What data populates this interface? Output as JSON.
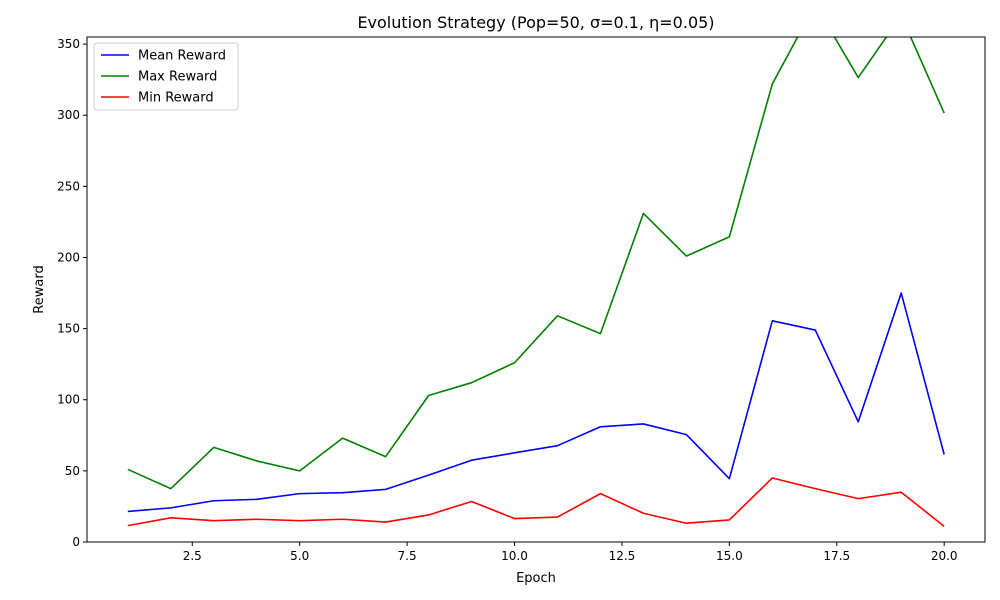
{
  "chart_data": {
    "type": "line",
    "title": "Evolution Strategy (Pop=50, σ=0.1, η=0.05)",
    "xlabel": "Epoch",
    "ylabel": "Reward",
    "xlim": [
      0.05,
      20.95
    ],
    "ylim": [
      0,
      355
    ],
    "xticks": [
      2.5,
      5.0,
      7.5,
      10.0,
      12.5,
      15.0,
      17.5,
      20.0
    ],
    "xtick_labels": [
      "2.5",
      "5.0",
      "7.5",
      "10.0",
      "12.5",
      "15.0",
      "17.5",
      "20.0"
    ],
    "yticks": [
      0,
      50,
      100,
      150,
      200,
      250,
      300,
      350
    ],
    "ytick_labels": [
      "0",
      "50",
      "100",
      "150",
      "200",
      "250",
      "300",
      "350"
    ],
    "grid": false,
    "legend_position": "top-left",
    "x": [
      1,
      2,
      3,
      4,
      5,
      6,
      7,
      8,
      9,
      10,
      11,
      12,
      13,
      14,
      15,
      16,
      17,
      18,
      19,
      20
    ],
    "series": [
      {
        "name": "Mean Reward",
        "color": "#0000ff",
        "values": [
          21.5,
          24,
          29,
          30,
          34,
          34.7,
          37,
          47,
          57.5,
          62.7,
          67.7,
          81,
          83,
          75.5,
          44.5,
          155.5,
          149,
          84.5,
          175,
          61.5
        ]
      },
      {
        "name": "Max Reward",
        "color": "#008000",
        "values": [
          51,
          37.5,
          66.5,
          57,
          50,
          73,
          60,
          103,
          112,
          126,
          159,
          146.5,
          231,
          201,
          214.5,
          322,
          378,
          326.5,
          370,
          301.5
        ]
      },
      {
        "name": "Min Reward",
        "color": "#ff0000",
        "values": [
          11.5,
          17,
          15,
          16,
          15,
          16,
          14,
          19,
          28.5,
          16.5,
          17.5,
          34,
          20.2,
          13.2,
          15.5,
          45,
          37.5,
          30.5,
          35,
          11
        ]
      }
    ]
  }
}
